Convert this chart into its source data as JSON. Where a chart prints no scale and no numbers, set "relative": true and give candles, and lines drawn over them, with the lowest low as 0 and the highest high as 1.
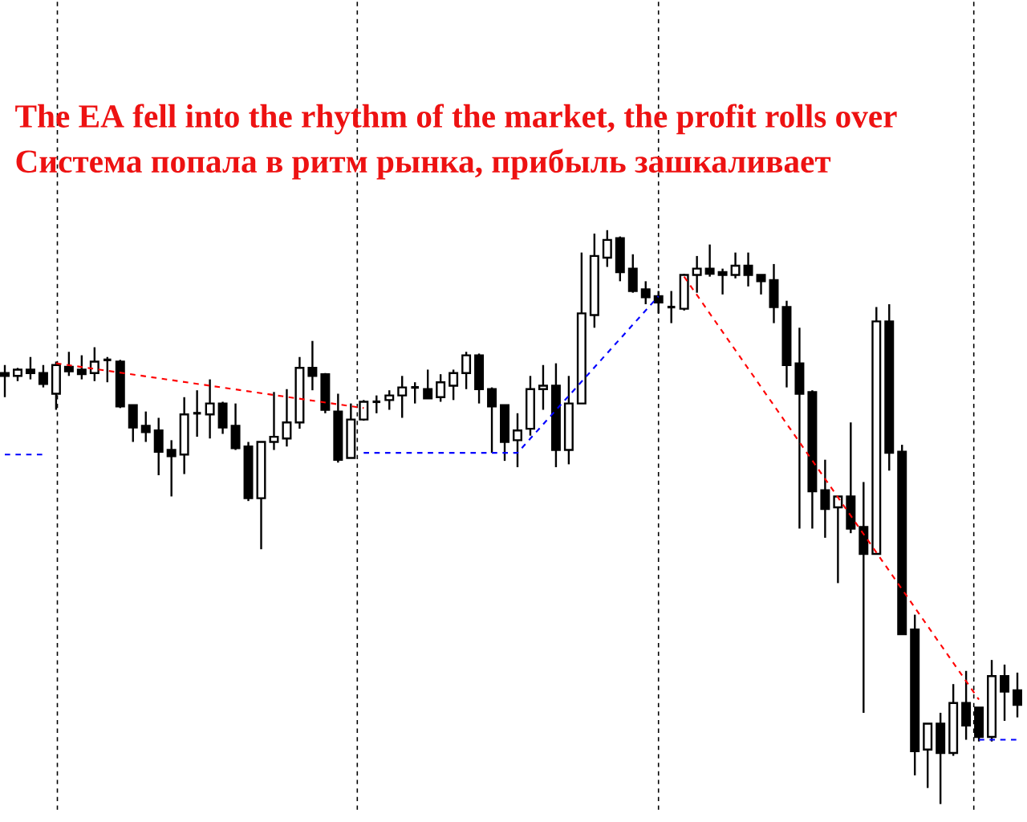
{
  "chart_data": {
    "type": "candlestick",
    "title": "The EA fell into the rhythm of the market, the profit rolls over",
    "subtitle": "Система попала в ритм рынка, прибыль зашкаливает",
    "relative": true,
    "categories": [
      null,
      null,
      null,
      null,
      null,
      null,
      null,
      null,
      null,
      null,
      null,
      null,
      null,
      null,
      null,
      null,
      null,
      null,
      null,
      null,
      null,
      null,
      null,
      null,
      null,
      null,
      null,
      null,
      null,
      null,
      null,
      null,
      null,
      null,
      null,
      null,
      null,
      null,
      null,
      null,
      null,
      null,
      null,
      null,
      null,
      null,
      null,
      null,
      null,
      null,
      null,
      null,
      null,
      null,
      null,
      null,
      null,
      null,
      null,
      null,
      null,
      null,
      null,
      null,
      null,
      null,
      null,
      null,
      null,
      null,
      null,
      null,
      null,
      null,
      null,
      null,
      null,
      null,
      null,
      null
    ],
    "ohlc": [
      [
        0.751,
        0.765,
        0.709,
        0.746
      ],
      [
        0.746,
        0.76,
        0.737,
        0.757
      ],
      [
        0.757,
        0.779,
        0.74,
        0.751
      ],
      [
        0.751,
        0.765,
        0.726,
        0.732
      ],
      [
        0.715,
        0.771,
        0.687,
        0.765
      ],
      [
        0.762,
        0.788,
        0.746,
        0.754
      ],
      [
        0.757,
        0.782,
        0.74,
        0.749
      ],
      [
        0.751,
        0.796,
        0.737,
        0.771
      ],
      [
        0.774,
        0.779,
        0.735,
        0.771
      ],
      [
        0.771,
        0.774,
        0.69,
        0.693
      ],
      [
        0.695,
        0.695,
        0.631,
        0.656
      ],
      [
        0.659,
        0.684,
        0.631,
        0.648
      ],
      [
        0.651,
        0.673,
        0.573,
        0.614
      ],
      [
        0.617,
        0.634,
        0.536,
        0.606
      ],
      [
        0.609,
        0.709,
        0.575,
        0.679
      ],
      [
        0.681,
        0.721,
        0.64,
        0.679
      ],
      [
        0.679,
        0.74,
        0.637,
        0.698
      ],
      [
        0.698,
        0.701,
        0.645,
        0.656
      ],
      [
        0.659,
        0.698,
        0.617,
        0.62
      ],
      [
        0.623,
        0.631,
        0.528,
        0.533
      ],
      [
        0.533,
        0.631,
        0.444,
        0.631
      ],
      [
        0.631,
        0.718,
        0.617,
        0.64
      ],
      [
        0.637,
        0.723,
        0.623,
        0.665
      ],
      [
        0.665,
        0.779,
        0.654,
        0.76
      ],
      [
        0.76,
        0.807,
        0.721,
        0.746
      ],
      [
        0.749,
        0.751,
        0.681,
        0.687
      ],
      [
        0.684,
        0.715,
        0.595,
        0.6
      ],
      [
        0.603,
        0.698,
        0.603,
        0.67
      ],
      [
        0.67,
        0.704,
        0.668,
        0.701
      ],
      [
        0.701,
        0.712,
        0.681,
        0.704
      ],
      [
        0.704,
        0.721,
        0.687,
        0.712
      ],
      [
        0.712,
        0.746,
        0.673,
        0.726
      ],
      [
        0.726,
        0.735,
        0.698,
        0.723
      ],
      [
        0.723,
        0.757,
        0.707,
        0.707
      ],
      [
        0.709,
        0.749,
        0.701,
        0.735
      ],
      [
        0.729,
        0.757,
        0.704,
        0.751
      ],
      [
        0.751,
        0.788,
        0.723,
        0.782
      ],
      [
        0.782,
        0.785,
        0.698,
        0.723
      ],
      [
        0.723,
        0.726,
        0.612,
        0.693
      ],
      [
        0.695,
        0.695,
        0.598,
        0.631
      ],
      [
        0.634,
        0.681,
        0.587,
        0.651
      ],
      [
        0.654,
        0.746,
        0.642,
        0.723
      ],
      [
        0.723,
        0.765,
        0.687,
        0.729
      ],
      [
        0.729,
        0.768,
        0.587,
        0.617
      ],
      [
        0.617,
        0.746,
        0.592,
        0.698
      ],
      [
        0.698,
        0.961,
        0.698,
        0.855
      ],
      [
        0.852,
        0.994,
        0.83,
        0.955
      ],
      [
        0.952,
        1.0,
        0.936,
        0.983
      ],
      [
        0.986,
        0.989,
        0.911,
        0.927
      ],
      [
        0.933,
        0.958,
        0.891,
        0.894
      ],
      [
        0.897,
        0.911,
        0.871,
        0.883
      ],
      [
        0.885,
        0.894,
        0.855,
        0.874
      ],
      [
        0.866,
        0.894,
        0.838,
        0.863
      ],
      [
        0.863,
        0.924,
        0.86,
        0.922
      ],
      [
        0.922,
        0.955,
        0.891,
        0.933
      ],
      [
        0.933,
        0.975,
        0.919,
        0.924
      ],
      [
        0.927,
        0.933,
        0.888,
        0.922
      ],
      [
        0.922,
        0.961,
        0.916,
        0.938
      ],
      [
        0.938,
        0.961,
        0.902,
        0.922
      ],
      [
        0.922,
        0.922,
        0.888,
        0.911
      ],
      [
        0.913,
        0.941,
        0.838,
        0.866
      ],
      [
        0.866,
        0.877,
        0.726,
        0.765
      ],
      [
        0.768,
        0.83,
        0.48,
        0.715
      ],
      [
        0.718,
        0.721,
        0.48,
        0.545
      ],
      [
        0.547,
        0.6,
        0.464,
        0.514
      ],
      [
        0.517,
        0.536,
        0.385,
        0.536
      ],
      [
        0.536,
        0.665,
        0.472,
        0.48
      ],
      [
        0.483,
        0.561,
        0.159,
        0.436
      ],
      [
        0.436,
        0.866,
        0.436,
        0.841
      ],
      [
        0.841,
        0.871,
        0.581,
        0.612
      ],
      [
        0.614,
        0.626,
        0.296,
        0.296
      ],
      [
        0.304,
        0.33,
        0.05,
        0.092
      ],
      [
        0.095,
        0.14,
        0.028,
        0.14
      ],
      [
        0.14,
        0.159,
        0.0,
        0.089
      ],
      [
        0.089,
        0.209,
        0.084,
        0.176
      ],
      [
        0.176,
        0.232,
        0.112,
        0.137
      ],
      [
        0.168,
        0.168,
        0.109,
        0.117
      ],
      [
        0.117,
        0.251,
        0.109,
        0.223
      ],
      [
        0.223,
        0.243,
        0.145,
        0.196
      ],
      [
        0.198,
        0.229,
        0.151,
        0.173
      ]
    ],
    "series": [
      {
        "type": "line",
        "color": "#0000ff",
        "line_style": "dashed",
        "values": [
          0.609,
          null,
          null,
          0.609,
          null,
          null,
          null,
          null,
          null,
          null,
          null,
          null,
          null,
          null,
          null,
          null,
          null,
          null,
          null,
          null,
          null,
          null,
          null,
          null,
          null,
          null,
          null,
          null,
          null,
          null,
          null,
          null,
          null,
          null,
          null,
          null,
          null,
          null,
          null,
          null,
          null,
          null,
          null,
          null,
          null,
          null,
          null,
          null,
          null,
          null,
          null,
          null,
          null,
          null,
          null,
          null,
          null,
          null,
          null,
          null,
          null,
          null,
          null,
          null,
          null,
          null,
          null,
          null,
          null,
          null,
          null,
          null,
          null,
          null,
          null,
          null,
          null,
          null,
          null,
          null
        ]
      },
      {
        "type": "line",
        "color": "#ff0000",
        "line_style": "dashed",
        "values": [
          null,
          null,
          null,
          null,
          0.768,
          null,
          null,
          null,
          null,
          null,
          null,
          null,
          null,
          null,
          null,
          null,
          null,
          null,
          null,
          null,
          null,
          null,
          null,
          null,
          null,
          null,
          null,
          null,
          0.69,
          null,
          null,
          null,
          null,
          null,
          null,
          null,
          null,
          null,
          null,
          null,
          null,
          null,
          null,
          null,
          null,
          null,
          null,
          null,
          null,
          null,
          null,
          null,
          null,
          null,
          null,
          null,
          null,
          null,
          null,
          null,
          null,
          null,
          null,
          null,
          null,
          null,
          null,
          null,
          null,
          null,
          null,
          null,
          null,
          null,
          null,
          null,
          null,
          null,
          null,
          null
        ]
      },
      {
        "type": "line",
        "color": "#0000ff",
        "line_style": "dashed",
        "values": [
          null,
          null,
          null,
          null,
          null,
          null,
          null,
          null,
          null,
          null,
          null,
          null,
          null,
          null,
          null,
          null,
          null,
          null,
          null,
          null,
          null,
          null,
          null,
          null,
          null,
          null,
          null,
          null,
          0.612,
          null,
          null,
          null,
          null,
          null,
          null,
          null,
          null,
          null,
          null,
          null,
          0.612,
          null,
          null,
          null,
          null,
          null,
          null,
          null,
          null,
          null,
          null,
          0.885,
          null,
          null,
          null,
          null,
          null,
          null,
          null,
          null,
          null,
          null,
          null,
          null,
          null,
          null,
          null,
          null,
          null,
          null,
          null,
          null,
          null,
          null,
          null,
          null,
          null,
          null,
          null,
          null
        ]
      },
      {
        "type": "line",
        "color": "#ff0000",
        "line_style": "dashed",
        "values": [
          null,
          null,
          null,
          null,
          null,
          null,
          null,
          null,
          null,
          null,
          null,
          null,
          null,
          null,
          null,
          null,
          null,
          null,
          null,
          null,
          null,
          null,
          null,
          null,
          null,
          null,
          null,
          null,
          null,
          null,
          null,
          null,
          null,
          null,
          null,
          null,
          null,
          null,
          null,
          null,
          null,
          null,
          null,
          null,
          null,
          null,
          null,
          null,
          null,
          null,
          null,
          null,
          null,
          0.919,
          null,
          null,
          null,
          null,
          null,
          null,
          null,
          null,
          null,
          null,
          null,
          null,
          null,
          null,
          null,
          null,
          null,
          null,
          null,
          null,
          null,
          null,
          0.182,
          null,
          null,
          null
        ]
      },
      {
        "type": "line",
        "color": "#0000ff",
        "line_style": "dashed",
        "values": [
          null,
          null,
          null,
          null,
          null,
          null,
          null,
          null,
          null,
          null,
          null,
          null,
          null,
          null,
          null,
          null,
          null,
          null,
          null,
          null,
          null,
          null,
          null,
          null,
          null,
          null,
          null,
          null,
          null,
          null,
          null,
          null,
          null,
          null,
          null,
          null,
          null,
          null,
          null,
          null,
          null,
          null,
          null,
          null,
          null,
          null,
          null,
          null,
          null,
          null,
          null,
          null,
          null,
          null,
          null,
          null,
          null,
          null,
          null,
          null,
          null,
          null,
          null,
          null,
          null,
          null,
          null,
          null,
          null,
          null,
          null,
          null,
          null,
          null,
          null,
          null,
          0.112,
          null,
          null,
          0.112
        ]
      }
    ]
  }
}
